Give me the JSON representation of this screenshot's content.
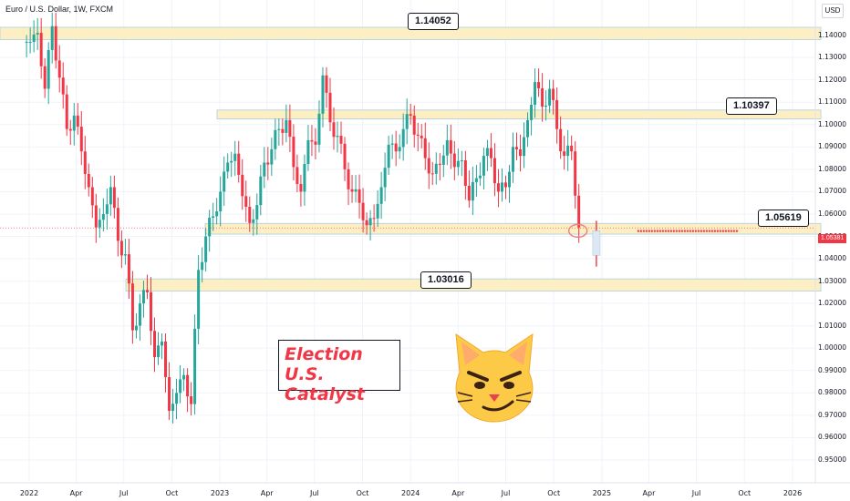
{
  "header": {
    "symbol_line": "Euro / U.S. Dollar, 1W, FXCM"
  },
  "currency": "USD",
  "annotation": {
    "line1": "Election U.S.",
    "line2": "Catalyst"
  },
  "last_price": "1.05381",
  "colors": {
    "up": "#26a69a",
    "down": "#f23645",
    "zone": "#fdeec4",
    "zone_border": "#a7d0e4",
    "annotation_text": "#f23645"
  },
  "emoji": "cat-face-icon",
  "chart_data": {
    "type": "candlestick",
    "title": "",
    "ylim": [
      0.95,
      1.15
    ],
    "y_ticks": [
      "1.14000",
      "1.13000",
      "1.12000",
      "1.11000",
      "1.10000",
      "1.09000",
      "1.08000",
      "1.07000",
      "1.06000",
      "1.05000",
      "1.04000",
      "1.03000",
      "1.02000",
      "1.01000",
      "1.00000",
      "0.99000",
      "0.98000",
      "0.97000",
      "0.96000",
      "0.95000"
    ],
    "x_ticks": [
      {
        "label": "2022",
        "date": "2022-01-01"
      },
      {
        "label": "Apr",
        "date": "2022-04-01"
      },
      {
        "label": "Jul",
        "date": "2022-07-01"
      },
      {
        "label": "Oct",
        "date": "2022-10-01"
      },
      {
        "label": "2023",
        "date": "2023-01-01"
      },
      {
        "label": "Apr",
        "date": "2023-04-01"
      },
      {
        "label": "Jul",
        "date": "2023-07-01"
      },
      {
        "label": "Oct",
        "date": "2023-10-01"
      },
      {
        "label": "2024",
        "date": "2024-01-01"
      },
      {
        "label": "Apr",
        "date": "2024-04-01"
      },
      {
        "label": "Jul",
        "date": "2024-07-01"
      },
      {
        "label": "Oct",
        "date": "2024-10-01"
      },
      {
        "label": "2025",
        "date": "2025-01-01"
      },
      {
        "label": "Apr",
        "date": "2025-04-01"
      },
      {
        "label": "Jul",
        "date": "2025-07-01"
      },
      {
        "label": "Oct",
        "date": "2025-10-01"
      },
      {
        "label": "2026",
        "date": "2026-01-01"
      }
    ],
    "levels": [
      {
        "label": "1.14052",
        "low": 1.138,
        "high": 1.1435
      },
      {
        "label": "1.10397",
        "low": 1.1025,
        "high": 1.1065
      },
      {
        "label": "1.05619",
        "low": 1.051,
        "high": 1.0558
      },
      {
        "label": "1.03016",
        "low": 1.0255,
        "high": 1.031
      }
    ],
    "closes": [
      {
        "date": "2021-12-27",
        "value": 1.137
      },
      {
        "date": "2022-01-10",
        "value": 1.141
      },
      {
        "date": "2022-01-24",
        "value": 1.116
      },
      {
        "date": "2022-02-07",
        "value": 1.144
      },
      {
        "date": "2022-02-21",
        "value": 1.121
      },
      {
        "date": "2022-03-07",
        "value": 1.098
      },
      {
        "date": "2022-03-21",
        "value": 1.104
      },
      {
        "date": "2022-04-04",
        "value": 1.088
      },
      {
        "date": "2022-04-18",
        "value": 1.072
      },
      {
        "date": "2022-05-02",
        "value": 1.054
      },
      {
        "date": "2022-05-16",
        "value": 1.06
      },
      {
        "date": "2022-05-30",
        "value": 1.072
      },
      {
        "date": "2022-06-13",
        "value": 1.048
      },
      {
        "date": "2022-06-27",
        "value": 1.042
      },
      {
        "date": "2022-07-11",
        "value": 1.008
      },
      {
        "date": "2022-07-25",
        "value": 1.02
      },
      {
        "date": "2022-08-08",
        "value": 1.025
      },
      {
        "date": "2022-08-22",
        "value": 0.996
      },
      {
        "date": "2022-09-05",
        "value": 1.003
      },
      {
        "date": "2022-09-19",
        "value": 0.972
      },
      {
        "date": "2022-10-03",
        "value": 0.98
      },
      {
        "date": "2022-10-17",
        "value": 0.988
      },
      {
        "date": "2022-10-31",
        "value": 0.975
      },
      {
        "date": "2022-11-14",
        "value": 1.035
      },
      {
        "date": "2022-11-28",
        "value": 1.05
      },
      {
        "date": "2022-12-12",
        "value": 1.059
      },
      {
        "date": "2022-12-26",
        "value": 1.07
      },
      {
        "date": "2023-01-09",
        "value": 1.083
      },
      {
        "date": "2023-01-23",
        "value": 1.087
      },
      {
        "date": "2023-02-06",
        "value": 1.068
      },
      {
        "date": "2023-02-20",
        "value": 1.056
      },
      {
        "date": "2023-03-06",
        "value": 1.064
      },
      {
        "date": "2023-03-20",
        "value": 1.083
      },
      {
        "date": "2023-04-03",
        "value": 1.089
      },
      {
        "date": "2023-04-17",
        "value": 1.098
      },
      {
        "date": "2023-05-01",
        "value": 1.102
      },
      {
        "date": "2023-05-15",
        "value": 1.081
      },
      {
        "date": "2023-05-29",
        "value": 1.07
      },
      {
        "date": "2023-06-12",
        "value": 1.093
      },
      {
        "date": "2023-06-26",
        "value": 1.091
      },
      {
        "date": "2023-07-10",
        "value": 1.122
      },
      {
        "date": "2023-07-24",
        "value": 1.101
      },
      {
        "date": "2023-08-07",
        "value": 1.095
      },
      {
        "date": "2023-08-21",
        "value": 1.08
      },
      {
        "date": "2023-09-04",
        "value": 1.07
      },
      {
        "date": "2023-09-18",
        "value": 1.065
      },
      {
        "date": "2023-10-02",
        "value": 1.055
      },
      {
        "date": "2023-10-16",
        "value": 1.058
      },
      {
        "date": "2023-10-30",
        "value": 1.072
      },
      {
        "date": "2023-11-13",
        "value": 1.091
      },
      {
        "date": "2023-11-27",
        "value": 1.088
      },
      {
        "date": "2023-12-11",
        "value": 1.098
      },
      {
        "date": "2023-12-25",
        "value": 1.104
      },
      {
        "date": "2024-01-08",
        "value": 1.095
      },
      {
        "date": "2024-01-22",
        "value": 1.085
      },
      {
        "date": "2024-02-05",
        "value": 1.078
      },
      {
        "date": "2024-02-19",
        "value": 1.082
      },
      {
        "date": "2024-03-04",
        "value": 1.093
      },
      {
        "date": "2024-03-18",
        "value": 1.081
      },
      {
        "date": "2024-04-01",
        "value": 1.084
      },
      {
        "date": "2024-04-15",
        "value": 1.066
      },
      {
        "date": "2024-04-29",
        "value": 1.076
      },
      {
        "date": "2024-05-13",
        "value": 1.086
      },
      {
        "date": "2024-05-27",
        "value": 1.085
      },
      {
        "date": "2024-06-10",
        "value": 1.07
      },
      {
        "date": "2024-06-24",
        "value": 1.072
      },
      {
        "date": "2024-07-08",
        "value": 1.09
      },
      {
        "date": "2024-07-22",
        "value": 1.086
      },
      {
        "date": "2024-08-05",
        "value": 1.102
      },
      {
        "date": "2024-08-19",
        "value": 1.119
      },
      {
        "date": "2024-09-02",
        "value": 1.108
      },
      {
        "date": "2024-09-16",
        "value": 1.116
      },
      {
        "date": "2024-09-30",
        "value": 1.098
      },
      {
        "date": "2024-10-14",
        "value": 1.086
      },
      {
        "date": "2024-10-28",
        "value": 1.088
      },
      {
        "date": "2024-11-11",
        "value": 1.054
      }
    ]
  }
}
